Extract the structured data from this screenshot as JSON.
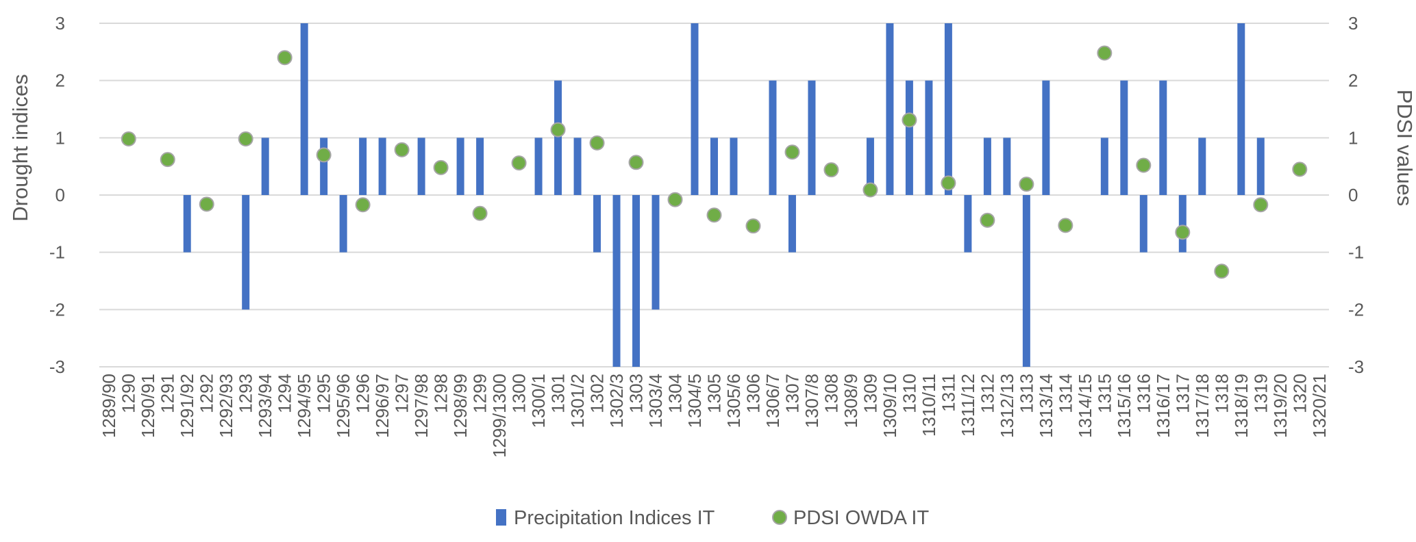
{
  "chart_data": {
    "type": "bar",
    "ylabel": "Drought indices",
    "y2label": "PDSI values",
    "ylim": [
      -3,
      3
    ],
    "y2lim": [
      -3,
      3
    ],
    "yticks": [
      3,
      2,
      1,
      0,
      -1,
      -2,
      -3
    ],
    "y2ticks": [
      3,
      2,
      1,
      0,
      -1,
      -2,
      -3
    ],
    "grid": true,
    "legend_position": "bottom",
    "categories": [
      "1289/90",
      "1290",
      "1290/91",
      "1291",
      "1291/92",
      "1292",
      "1292/93",
      "1293",
      "1293/94",
      "1294",
      "1294/95",
      "1295",
      "1295/96",
      "1296",
      "1296/97",
      "1297",
      "1297/98",
      "1298",
      "1298/99",
      "1299",
      "1299/1300",
      "1300",
      "1300/1",
      "1301",
      "1301/2",
      "1302",
      "1302/3",
      "1303",
      "1303/4",
      "1304",
      "1304/5",
      "1305",
      "1305/6",
      "1306",
      "1306/7",
      "1307",
      "1307/8",
      "1308",
      "1308/9",
      "1309",
      "1309/10",
      "1310",
      "1310/11",
      "1311",
      "1311/12",
      "1312",
      "1312/13",
      "1313",
      "1313/14",
      "1314",
      "1314/15",
      "1315",
      "1315/16",
      "1316",
      "1316/17",
      "1317",
      "1317/18",
      "1318",
      "1318/19",
      "1319",
      "1319/20",
      "1320",
      "1320/21"
    ],
    "series": [
      {
        "name": "Precipitation Indices IT",
        "kind": "bar",
        "color": "#4472C4",
        "values": [
          null,
          null,
          null,
          null,
          -1,
          null,
          null,
          -2,
          1,
          null,
          3,
          1,
          -1,
          1,
          1,
          null,
          1,
          null,
          1,
          1,
          null,
          null,
          1,
          2,
          1,
          -1,
          -3,
          -3,
          -2,
          null,
          3,
          1,
          1,
          null,
          2,
          -1,
          2,
          null,
          null,
          1,
          3,
          2,
          2,
          3,
          -1,
          1,
          1,
          -3,
          2,
          null,
          null,
          1,
          2,
          -1,
          2,
          -1,
          1,
          null,
          3,
          1,
          null,
          null,
          null
        ]
      },
      {
        "name": "PDSI OWDA IT",
        "kind": "scatter",
        "color": "#70AD47",
        "values": [
          null,
          0.98,
          null,
          0.62,
          null,
          -0.16,
          null,
          0.98,
          null,
          2.4,
          null,
          0.7,
          null,
          -0.17,
          null,
          0.79,
          null,
          0.48,
          null,
          -0.32,
          null,
          0.56,
          null,
          1.14,
          null,
          0.91,
          null,
          0.57,
          null,
          -0.08,
          null,
          -0.35,
          null,
          -0.54,
          null,
          0.75,
          null,
          0.44,
          null,
          0.09,
          null,
          1.31,
          null,
          0.21,
          null,
          -0.44,
          null,
          0.19,
          null,
          -0.53,
          null,
          2.48,
          null,
          0.52,
          null,
          -0.65,
          null,
          -1.33,
          null,
          -0.17,
          null,
          0.45,
          null
        ]
      }
    ]
  }
}
